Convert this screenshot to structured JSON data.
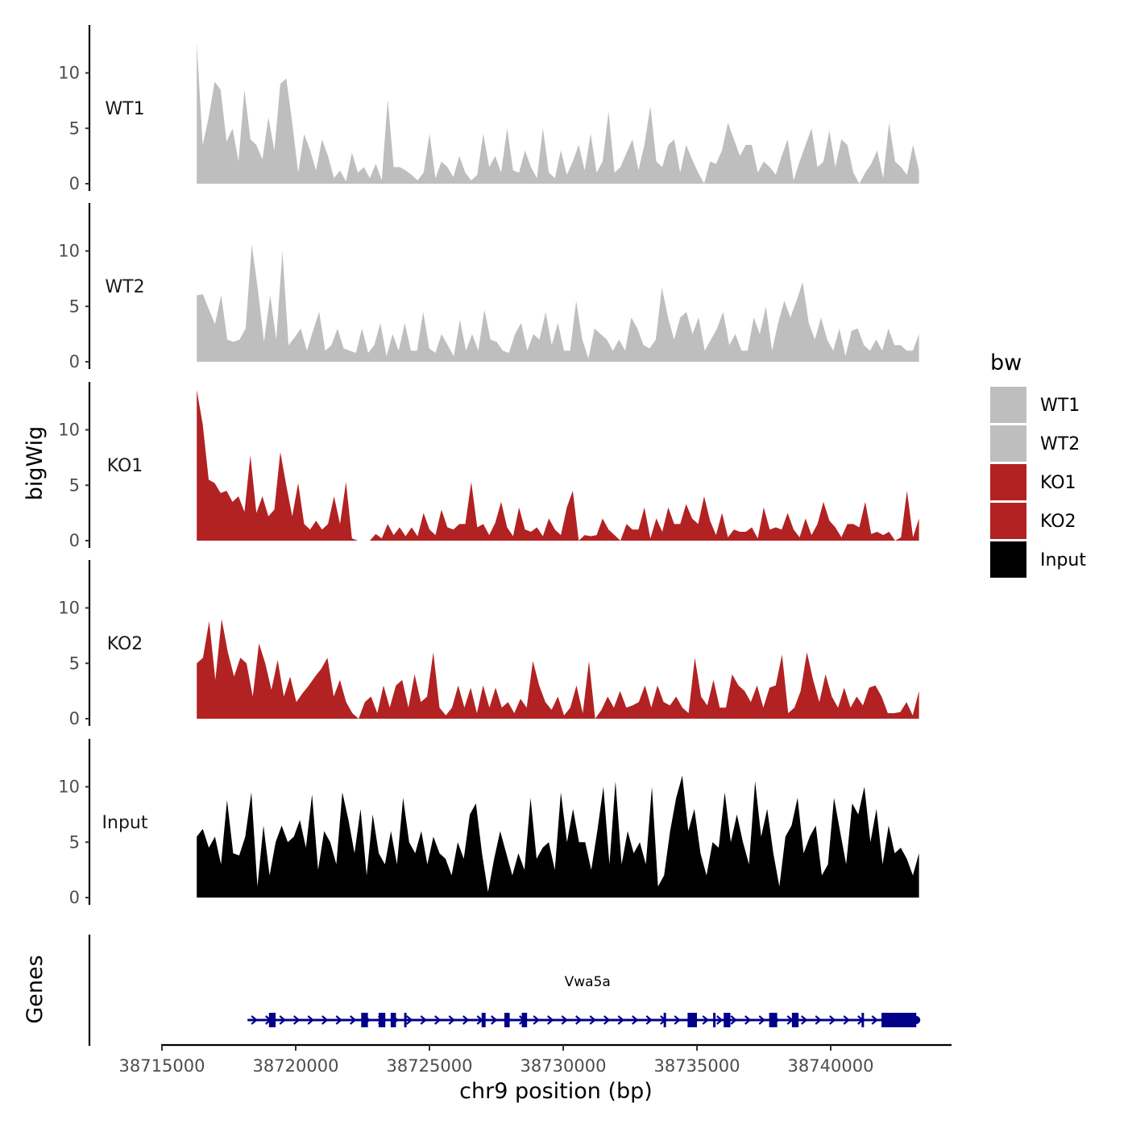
{
  "chart_data": {
    "type": "area",
    "chromosome": "chr9",
    "xlabel": "chr9 position (bp)",
    "ylabel": "bigWig",
    "genes_label": "Genes",
    "xlim": [
      38714000,
      38743500
    ],
    "x_ticks": [
      38715000,
      38720000,
      38725000,
      38730000,
      38735000,
      38740000
    ],
    "x_tick_labels": [
      "38715000",
      "38720000",
      "38725000",
      "38730000",
      "38735000",
      "38740000"
    ],
    "ylim": [
      0,
      14
    ],
    "y_ticks": [
      0,
      5,
      10
    ],
    "y_tick_labels": [
      "0",
      "5",
      "10"
    ],
    "data_range": [
      38716300,
      38743300
    ],
    "legend": {
      "title": "bw",
      "entries": [
        {
          "label": "WT1",
          "color": "#bebebe"
        },
        {
          "label": "WT2",
          "color": "#bebebe"
        },
        {
          "label": "KO1",
          "color": "#b22222"
        },
        {
          "label": "KO2",
          "color": "#b22222"
        },
        {
          "label": "Input",
          "color": "#000000"
        }
      ]
    },
    "tracks": [
      {
        "name": "WT1",
        "color": "#bebebe",
        "values": [
          12.7,
          3.5,
          6.0,
          9.2,
          8.5,
          3.8,
          5.0,
          2.0,
          8.5,
          4.0,
          3.5,
          2.2,
          6.0,
          3.0,
          9.0,
          9.5,
          5.5,
          1.0,
          4.5,
          3.0,
          1.2,
          4.0,
          2.5,
          0.5,
          1.2,
          0.2,
          2.8,
          1.0,
          1.5,
          0.5,
          1.8,
          0.3,
          7.6,
          1.5,
          1.5,
          1.2,
          0.8,
          0.3,
          1.0,
          4.5,
          0.5,
          2.0,
          1.5,
          0.6,
          2.5,
          1.0,
          0.3,
          0.8,
          4.5,
          1.5,
          2.5,
          1.0,
          5.0,
          1.2,
          1.0,
          3.0,
          1.5,
          0.5,
          5.0,
          1.0,
          0.5,
          3.0,
          0.8,
          2.0,
          3.5,
          1.2,
          4.5,
          1.0,
          2.0,
          6.5,
          1.0,
          1.5,
          2.8,
          4.0,
          1.2,
          3.5,
          7.0,
          2.0,
          1.5,
          3.5,
          4.0,
          1.0,
          3.5,
          2.2,
          1.0,
          0.0,
          2.0,
          1.8,
          3.0,
          5.5,
          4.0,
          2.5,
          3.5,
          3.5,
          1.0,
          2.0,
          1.5,
          0.8,
          2.5,
          4.0,
          0.3,
          2.0,
          3.5,
          5.0,
          1.5,
          2.0,
          4.8,
          1.5,
          4.0,
          3.5,
          1.0,
          0.0,
          1.0,
          1.8,
          3.0,
          0.5,
          5.5,
          2.0,
          1.5,
          0.8,
          3.5,
          1.2
        ]
      },
      {
        "name": "WT2",
        "color": "#bebebe",
        "values": [
          6.0,
          6.1,
          4.7,
          3.4,
          6.0,
          2.0,
          1.8,
          2.0,
          3.0,
          10.6,
          6.5,
          1.8,
          6.0,
          2.0,
          10.0,
          1.5,
          2.2,
          3.0,
          1.0,
          2.8,
          4.5,
          1.0,
          1.5,
          3.0,
          1.2,
          1.0,
          0.8,
          3.0,
          0.8,
          1.5,
          3.5,
          0.5,
          2.5,
          1.0,
          3.5,
          1.0,
          1.0,
          4.5,
          1.2,
          0.8,
          2.5,
          1.5,
          0.5,
          3.8,
          1.0,
          2.5,
          1.0,
          4.7,
          2.0,
          1.8,
          1.0,
          0.8,
          2.5,
          3.5,
          1.0,
          2.5,
          2.0,
          4.5,
          1.5,
          3.5,
          1.0,
          1.0,
          5.5,
          2.0,
          0.3,
          3.0,
          2.5,
          2.0,
          1.0,
          2.0,
          1.0,
          4.0,
          3.0,
          1.5,
          1.2,
          2.0,
          6.7,
          4.0,
          2.0,
          4.0,
          4.5,
          2.5,
          4.0,
          1.0,
          2.0,
          3.0,
          4.5,
          1.5,
          2.5,
          1.0,
          1.0,
          4.0,
          2.5,
          5.0,
          1.0,
          3.5,
          5.5,
          4.0,
          5.5,
          7.2,
          3.5,
          2.0,
          4.0,
          2.0,
          1.0,
          3.0,
          0.5,
          2.8,
          3.0,
          1.5,
          1.0,
          2.0,
          1.0,
          3.0,
          1.5,
          1.5,
          1.0,
          1.0,
          2.5
        ]
      },
      {
        "name": "KO1",
        "color": "#b22222",
        "values": [
          13.6,
          10.5,
          5.5,
          5.2,
          4.3,
          4.5,
          3.5,
          4.0,
          2.6,
          7.7,
          2.5,
          4.0,
          2.2,
          2.8,
          8.0,
          5.0,
          2.2,
          5.2,
          1.5,
          1.0,
          1.8,
          1.0,
          1.5,
          4.0,
          1.5,
          5.3,
          0.2,
          0.0,
          0.0,
          0.0,
          0.6,
          0.2,
          1.5,
          0.5,
          1.2,
          0.4,
          1.2,
          0.4,
          2.5,
          1.0,
          0.5,
          2.8,
          1.2,
          1.0,
          1.5,
          1.5,
          5.3,
          1.2,
          1.5,
          0.5,
          1.6,
          3.5,
          1.2,
          0.4,
          3.0,
          1.0,
          0.8,
          1.2,
          0.4,
          2.0,
          1.0,
          0.5,
          3.0,
          4.5,
          0.0,
          0.5,
          0.4,
          0.5,
          2.0,
          1.0,
          0.5,
          0.0,
          1.5,
          1.0,
          1.0,
          3.0,
          0.2,
          2.0,
          0.8,
          3.0,
          1.5,
          1.5,
          3.3,
          2.0,
          1.5,
          4.0,
          1.8,
          0.5,
          2.5,
          0.3,
          1.0,
          0.8,
          0.8,
          1.2,
          0.2,
          3.0,
          1.0,
          1.2,
          1.0,
          2.5,
          1.0,
          0.3,
          2.0,
          0.5,
          1.5,
          3.5,
          1.8,
          1.2,
          0.3,
          1.5,
          1.5,
          1.2,
          3.5,
          0.6,
          0.8,
          0.5,
          0.8,
          0.0,
          0.3,
          4.5,
          0.3,
          2.0
        ]
      },
      {
        "name": "KO2",
        "color": "#b22222",
        "values": [
          5.0,
          5.5,
          8.8,
          3.5,
          9.0,
          6.0,
          3.8,
          5.5,
          5.0,
          2.0,
          6.8,
          5.0,
          2.6,
          5.3,
          2.0,
          3.8,
          1.5,
          2.3,
          3.0,
          3.8,
          4.5,
          5.5,
          2.0,
          3.5,
          1.5,
          0.5,
          0.0,
          1.5,
          2.0,
          0.5,
          3.0,
          1.0,
          3.0,
          3.5,
          1.0,
          4.0,
          1.5,
          2.0,
          6.0,
          1.0,
          0.3,
          1.0,
          3.0,
          1.0,
          2.8,
          0.5,
          3.0,
          1.0,
          2.8,
          1.0,
          1.5,
          0.5,
          1.8,
          1.0,
          5.2,
          3.0,
          1.5,
          0.8,
          2.0,
          0.3,
          1.0,
          3.0,
          0.5,
          5.2,
          0.0,
          0.8,
          2.0,
          1.0,
          2.5,
          1.0,
          1.2,
          1.5,
          3.0,
          1.0,
          3.0,
          1.5,
          1.2,
          2.0,
          1.0,
          0.5,
          5.5,
          2.0,
          1.2,
          3.5,
          1.0,
          1.0,
          4.0,
          3.0,
          2.5,
          1.5,
          3.0,
          1.0,
          2.8,
          3.0,
          5.8,
          0.5,
          1.0,
          2.5,
          6.0,
          3.5,
          1.5,
          4.0,
          2.0,
          1.0,
          2.8,
          1.0,
          2.0,
          1.2,
          2.8,
          3.0,
          2.0,
          0.5,
          0.5,
          0.6,
          1.5,
          0.3,
          2.5
        ]
      },
      {
        "name": "Input",
        "color": "#000000",
        "values": [
          5.5,
          6.2,
          4.5,
          5.5,
          3.0,
          8.8,
          4.0,
          3.8,
          5.5,
          9.5,
          1.0,
          6.5,
          2.0,
          5.0,
          6.5,
          5.0,
          5.5,
          7.0,
          4.5,
          9.3,
          2.5,
          6.0,
          5.0,
          3.0,
          9.5,
          7.0,
          4.0,
          8.0,
          2.0,
          7.5,
          4.0,
          3.0,
          6.0,
          3.0,
          9.0,
          5.0,
          4.0,
          6.0,
          3.0,
          5.5,
          4.0,
          3.5,
          2.0,
          5.0,
          3.5,
          7.5,
          8.5,
          4.0,
          0.5,
          3.5,
          6.0,
          4.0,
          2.0,
          4.0,
          2.5,
          9.0,
          3.5,
          4.5,
          5.0,
          2.5,
          9.5,
          5.0,
          8.0,
          5.0,
          5.0,
          2.5,
          6.0,
          10.0,
          3.0,
          10.5,
          3.0,
          6.0,
          4.0,
          5.0,
          3.0,
          10.0,
          1.0,
          2.0,
          6.0,
          9.0,
          11.0,
          6.0,
          8.0,
          4.0,
          2.0,
          5.0,
          4.5,
          9.5,
          5.0,
          7.5,
          5.0,
          3.0,
          10.5,
          5.5,
          8.0,
          4.0,
          1.0,
          5.5,
          6.5,
          9.0,
          4.0,
          5.5,
          6.5,
          2.0,
          3.0,
          9.0,
          6.0,
          3.0,
          8.5,
          7.5,
          10.0,
          5.0,
          8.0,
          3.0,
          6.5,
          4.0,
          4.5,
          3.5,
          2.0,
          4.0
        ]
      }
    ],
    "gene": {
      "name": "Vwa5a",
      "color": "#00008b",
      "strand": "+",
      "start": 38718200,
      "end": 38743200,
      "exons": [
        [
          38719000,
          38719250
        ],
        [
          38722450,
          38722700
        ],
        [
          38723100,
          38723350
        ],
        [
          38723550,
          38723750
        ],
        [
          38726950,
          38727100
        ],
        [
          38727800,
          38728000
        ],
        [
          38728450,
          38728650
        ],
        [
          38734650,
          38735000
        ],
        [
          38736000,
          38736250
        ],
        [
          38737700,
          38738000
        ],
        [
          38738550,
          38738800
        ],
        [
          38741900,
          38743200
        ]
      ],
      "introns_small": [
        38724100,
        38733800,
        38735650,
        38741200
      ]
    }
  }
}
